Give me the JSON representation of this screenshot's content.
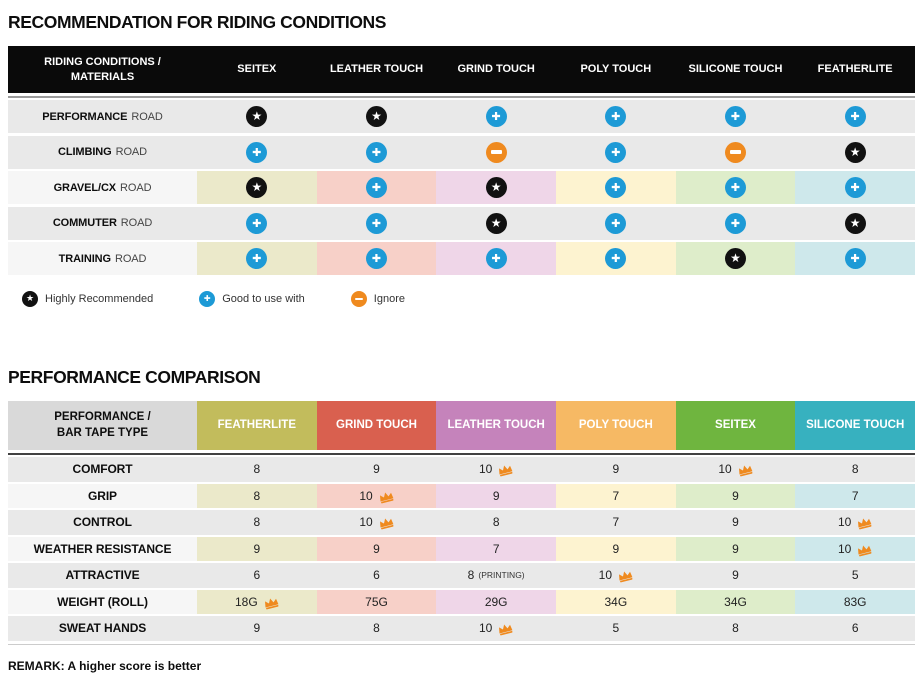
{
  "colors": {
    "rating_star_bg": "#111111",
    "rating_plus_bg": "#1D9AD6",
    "rating_minus_bg": "#EF8A1F",
    "crown": "#EF8A1F",
    "table1_header_bg": "#0A0A0A",
    "plain_row_bg": "#E9E9E9",
    "tinted_row_label_bg": "#F6F6F6",
    "table2_corner_bg": "#D9D9D9",
    "column_tints": [
      "#EBE9CA",
      "#F7D0C8",
      "#EFD6E8",
      "#FDF3D0",
      "#DEEDCA",
      "#CEE8EB"
    ],
    "table2_header_colors": [
      "#C2BC5C",
      "#D9604F",
      "#C583BB",
      "#F6B964",
      "#6FB53F",
      "#37B1BF"
    ]
  },
  "legend": [
    {
      "symbol": "star",
      "label": "Highly Recommended"
    },
    {
      "symbol": "plus",
      "label": "Good to use with"
    },
    {
      "symbol": "minus",
      "label": "Ignore"
    }
  ],
  "chart_data": [
    {
      "type": "table",
      "title": "RECOMMENDATION FOR RIDING CONDITIONS",
      "corner_line1": "RIDING CONDITIONS /",
      "corner_line2": "MATERIALS",
      "columns": [
        "SEITEX",
        "LEATHER TOUCH",
        "GRIND TOUCH",
        "POLY TOUCH",
        "SILICONE TOUCH",
        "FEATHERLITE"
      ],
      "rating_legend": {
        "star": "Highly Recommended",
        "plus": "Good to use with",
        "minus": "Ignore"
      },
      "rows": [
        {
          "condition": "PERFORMANCE",
          "suffix": "ROAD",
          "tinted": false,
          "ratings": [
            "star",
            "star",
            "plus",
            "plus",
            "plus",
            "plus"
          ]
        },
        {
          "condition": "CLIMBING",
          "suffix": "ROAD",
          "tinted": false,
          "ratings": [
            "plus",
            "plus",
            "minus",
            "plus",
            "minus",
            "star"
          ]
        },
        {
          "condition": "GRAVEL/CX",
          "suffix": "ROAD",
          "tinted": true,
          "ratings": [
            "star",
            "plus",
            "star",
            "plus",
            "plus",
            "plus"
          ]
        },
        {
          "condition": "COMMUTER",
          "suffix": "ROAD",
          "tinted": false,
          "ratings": [
            "plus",
            "plus",
            "star",
            "plus",
            "plus",
            "star"
          ]
        },
        {
          "condition": "TRAINING",
          "suffix": "ROAD",
          "tinted": true,
          "ratings": [
            "plus",
            "plus",
            "plus",
            "plus",
            "star",
            "plus"
          ]
        }
      ]
    },
    {
      "type": "table",
      "title": "PERFORMANCE COMPARISON",
      "corner_line1": "PERFORMANCE /",
      "corner_line2": "BAR TAPE TYPE",
      "columns": [
        "FEATHERLITE",
        "GRIND TOUCH",
        "LEATHER TOUCH",
        "POLY TOUCH",
        "SEITEX",
        "SILICONE TOUCH"
      ],
      "rows": [
        {
          "metric": "COMFORT",
          "tinted": false,
          "values": [
            {
              "v": "8"
            },
            {
              "v": "9"
            },
            {
              "v": "10",
              "crown": true
            },
            {
              "v": "9"
            },
            {
              "v": "10",
              "crown": true
            },
            {
              "v": "8"
            }
          ]
        },
        {
          "metric": "GRIP",
          "tinted": true,
          "values": [
            {
              "v": "8"
            },
            {
              "v": "10",
              "crown": true
            },
            {
              "v": "9"
            },
            {
              "v": "7"
            },
            {
              "v": "9"
            },
            {
              "v": "7"
            }
          ]
        },
        {
          "metric": "CONTROL",
          "tinted": false,
          "values": [
            {
              "v": "8"
            },
            {
              "v": "10",
              "crown": true
            },
            {
              "v": "8"
            },
            {
              "v": "7"
            },
            {
              "v": "9"
            },
            {
              "v": "10",
              "crown": true
            }
          ]
        },
        {
          "metric": "WEATHER RESISTANCE",
          "tinted": true,
          "values": [
            {
              "v": "9"
            },
            {
              "v": "9"
            },
            {
              "v": "7"
            },
            {
              "v": "9"
            },
            {
              "v": "9"
            },
            {
              "v": "10",
              "crown": true
            }
          ]
        },
        {
          "metric": "ATTRACTIVE",
          "tinted": false,
          "values": [
            {
              "v": "6"
            },
            {
              "v": "6"
            },
            {
              "v": "8",
              "note": "(PRINTING)"
            },
            {
              "v": "10",
              "crown": true
            },
            {
              "v": "9"
            },
            {
              "v": "5"
            }
          ]
        },
        {
          "metric": "WEIGHT (ROLL)",
          "tinted": true,
          "values": [
            {
              "v": "18G",
              "crown": true
            },
            {
              "v": "75G"
            },
            {
              "v": "29G"
            },
            {
              "v": "34G"
            },
            {
              "v": "34G"
            },
            {
              "v": "83G"
            }
          ]
        },
        {
          "metric": "SWEAT HANDS",
          "tinted": false,
          "values": [
            {
              "v": "9"
            },
            {
              "v": "8"
            },
            {
              "v": "10",
              "crown": true
            },
            {
              "v": "5"
            },
            {
              "v": "8"
            },
            {
              "v": "6"
            }
          ]
        }
      ],
      "remark": "REMARK: A higher score is better"
    }
  ]
}
